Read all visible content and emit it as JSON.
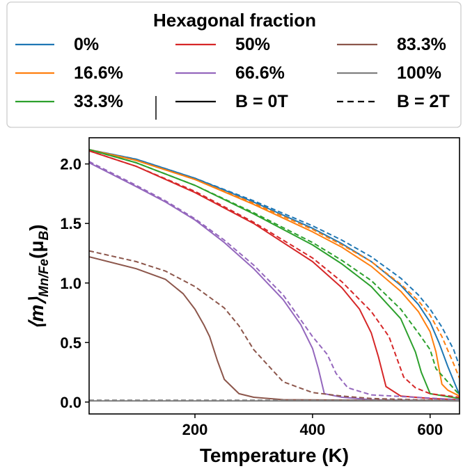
{
  "chart_data": {
    "type": "line",
    "xlabel": "Temperature (K)",
    "ylabel_parts": {
      "prefix": "⟨m⟩",
      "subscript": "Mn/Fe",
      "unit_open": "(μ",
      "unit_sub": "B",
      "unit_close": ")"
    },
    "xlim": [
      20,
      650
    ],
    "ylim": [
      -0.1,
      2.22
    ],
    "xticks": [
      200,
      400,
      600
    ],
    "yticks": [
      0.0,
      0.5,
      1.0,
      1.5,
      2.0
    ],
    "xtick_labels": [
      "200",
      "400",
      "600"
    ],
    "ytick_labels": [
      "0.0",
      "0.5",
      "1.0",
      "1.5",
      "2.0"
    ],
    "legend": {
      "title": "Hexagonal fraction",
      "placement": "top",
      "entries": [
        {
          "label": "0%",
          "color": "#1f77b4",
          "style": "solid"
        },
        {
          "label": "16.6%",
          "color": "#ff7f0e",
          "style": "solid"
        },
        {
          "label": "33.3%",
          "color": "#2ca02c",
          "style": "solid"
        },
        {
          "label": "50%",
          "color": "#d62728",
          "style": "solid"
        },
        {
          "label": "66.6%",
          "color": "#9467bd",
          "style": "solid"
        },
        {
          "label": "100%",
          "color": "#7f7f7f",
          "style": "solid"
        },
        {
          "label": "B = 0T",
          "color": "#000000",
          "style": "solid"
        },
        {
          "label": "B = 2T",
          "color": "#000000",
          "style": "dashed"
        },
        {
          "label": "83.3%",
          "color": "#8c564b",
          "style": "solid"
        }
      ]
    },
    "series": [
      {
        "name": "0%",
        "color": "#1f77b4",
        "style": "solid",
        "x": [
          20,
          100,
          200,
          300,
          400,
          450,
          500,
          550,
          580,
          600,
          615,
          630,
          650
        ],
        "y": [
          2.12,
          2.04,
          1.88,
          1.68,
          1.46,
          1.33,
          1.18,
          0.98,
          0.82,
          0.67,
          0.5,
          0.3,
          0.06
        ]
      },
      {
        "name": "0%",
        "color": "#1f77b4",
        "style": "dashed",
        "x": [
          20,
          100,
          200,
          300,
          400,
          450,
          500,
          550,
          580,
          600,
          620,
          640,
          650
        ],
        "y": [
          2.12,
          2.04,
          1.88,
          1.69,
          1.48,
          1.36,
          1.22,
          1.04,
          0.9,
          0.78,
          0.63,
          0.44,
          0.3
        ]
      },
      {
        "name": "16.6%",
        "color": "#ff7f0e",
        "style": "solid",
        "x": [
          20,
          100,
          200,
          300,
          400,
          450,
          500,
          550,
          580,
          600,
          610,
          620,
          630,
          650
        ],
        "y": [
          2.12,
          2.03,
          1.87,
          1.66,
          1.43,
          1.3,
          1.14,
          0.93,
          0.76,
          0.59,
          0.42,
          0.15,
          0.1,
          0.05
        ]
      },
      {
        "name": "16.6%",
        "color": "#ff7f0e",
        "style": "dashed",
        "x": [
          20,
          100,
          200,
          300,
          400,
          450,
          500,
          550,
          580,
          600,
          620,
          640,
          650
        ],
        "y": [
          2.12,
          2.03,
          1.87,
          1.67,
          1.45,
          1.32,
          1.18,
          0.99,
          0.85,
          0.73,
          0.55,
          0.32,
          0.2
        ]
      },
      {
        "name": "33.3%",
        "color": "#2ca02c",
        "style": "solid",
        "x": [
          20,
          100,
          200,
          300,
          400,
          450,
          500,
          550,
          575,
          585,
          600,
          650
        ],
        "y": [
          2.12,
          2.01,
          1.82,
          1.58,
          1.32,
          1.16,
          0.97,
          0.7,
          0.42,
          0.25,
          0.07,
          0.03
        ]
      },
      {
        "name": "33.3%",
        "color": "#2ca02c",
        "style": "dashed",
        "x": [
          20,
          100,
          200,
          300,
          400,
          450,
          500,
          550,
          580,
          600,
          610,
          650
        ],
        "y": [
          2.12,
          2.01,
          1.82,
          1.59,
          1.34,
          1.19,
          1.02,
          0.78,
          0.58,
          0.44,
          0.28,
          0.06
        ]
      },
      {
        "name": "50%",
        "color": "#d62728",
        "style": "solid",
        "x": [
          20,
          100,
          200,
          300,
          400,
          450,
          480,
          500,
          512,
          525,
          550,
          600,
          650
        ],
        "y": [
          2.11,
          1.98,
          1.76,
          1.5,
          1.18,
          0.96,
          0.78,
          0.58,
          0.38,
          0.13,
          0.05,
          0.03,
          0.02
        ]
      },
      {
        "name": "50%",
        "color": "#d62728",
        "style": "dashed",
        "x": [
          20,
          100,
          200,
          300,
          400,
          450,
          500,
          530,
          555,
          575,
          600,
          650
        ],
        "y": [
          2.11,
          1.98,
          1.77,
          1.51,
          1.21,
          1.01,
          0.76,
          0.55,
          0.21,
          0.12,
          0.07,
          0.04
        ]
      },
      {
        "name": "66.6%",
        "color": "#9467bd",
        "style": "solid",
        "x": [
          20,
          100,
          150,
          200,
          250,
          300,
          350,
          380,
          400,
          410,
          420,
          450,
          500,
          650
        ],
        "y": [
          2.01,
          1.81,
          1.68,
          1.53,
          1.34,
          1.12,
          0.86,
          0.65,
          0.45,
          0.28,
          0.07,
          0.04,
          0.02,
          0.01
        ]
      },
      {
        "name": "66.6%",
        "color": "#9467bd",
        "style": "dashed",
        "x": [
          20,
          100,
          150,
          200,
          250,
          300,
          350,
          400,
          425,
          440,
          460,
          500,
          650
        ],
        "y": [
          2.02,
          1.82,
          1.69,
          1.54,
          1.36,
          1.15,
          0.9,
          0.55,
          0.4,
          0.24,
          0.12,
          0.06,
          0.02
        ]
      },
      {
        "name": "83.3%",
        "color": "#8c564b",
        "style": "solid",
        "x": [
          20,
          100,
          150,
          180,
          200,
          215,
          225,
          238,
          250,
          275,
          300,
          350,
          650
        ],
        "y": [
          1.22,
          1.12,
          1.03,
          0.91,
          0.78,
          0.65,
          0.55,
          0.35,
          0.19,
          0.07,
          0.04,
          0.02,
          0.01
        ]
      },
      {
        "name": "83.3%",
        "color": "#8c564b",
        "style": "dashed",
        "x": [
          20,
          100,
          150,
          200,
          250,
          275,
          300,
          350,
          400,
          450,
          500,
          650
        ],
        "y": [
          1.27,
          1.18,
          1.1,
          0.97,
          0.79,
          0.64,
          0.44,
          0.17,
          0.08,
          0.05,
          0.03,
          0.01
        ]
      },
      {
        "name": "100%",
        "color": "#7f7f7f",
        "style": "solid",
        "x": [
          20,
          650
        ],
        "y": [
          0.01,
          0.01
        ]
      },
      {
        "name": "100%",
        "color": "#7f7f7f",
        "style": "dashed",
        "x": [
          20,
          650
        ],
        "y": [
          0.015,
          0.015
        ]
      }
    ]
  }
}
